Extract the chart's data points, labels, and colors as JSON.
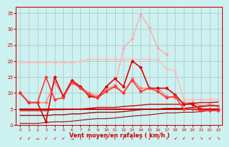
{
  "x": [
    0,
    1,
    2,
    3,
    4,
    5,
    6,
    7,
    8,
    9,
    10,
    11,
    12,
    13,
    14,
    15,
    16,
    17,
    18,
    19,
    20,
    21,
    22,
    23
  ],
  "series": [
    {
      "name": "rafales_max_pink",
      "y": [
        null,
        null,
        null,
        null,
        null,
        null,
        null,
        null,
        null,
        null,
        null,
        12.0,
        24.0,
        27.0,
        34.5,
        30.5,
        24.0,
        22.0,
        null,
        null,
        null,
        null,
        null,
        null
      ],
      "color": "#ffaaaa",
      "lw": 1.0,
      "marker": "D",
      "ms": 2.5,
      "zorder": 2
    },
    {
      "name": "vent_moyen_light",
      "y": [
        19.5,
        19.5,
        19.5,
        19.5,
        19.5,
        19.5,
        19.5,
        20.0,
        20.5,
        20.5,
        20.5,
        20.5,
        20.5,
        20.5,
        20.5,
        20.5,
        20.5,
        17.5,
        17.0,
        8.0,
        8.0,
        8.0,
        8.0,
        8.0
      ],
      "color": "#ffbbbb",
      "lw": 1.0,
      "marker": "D",
      "ms": 2.5,
      "zorder": 2
    },
    {
      "name": "vent_moyen_medium",
      "y": [
        10.0,
        7.0,
        7.0,
        7.0,
        13.5,
        9.0,
        13.0,
        12.0,
        10.0,
        9.0,
        11.0,
        12.5,
        10.0,
        14.5,
        11.5,
        11.5,
        11.5,
        9.0,
        8.5,
        7.0,
        7.0,
        6.0,
        6.5,
        6.0
      ],
      "color": "#ff7777",
      "lw": 1.0,
      "marker": "D",
      "ms": 2.5,
      "zorder": 3
    },
    {
      "name": "rafales_dark",
      "y": [
        10.0,
        7.0,
        7.0,
        1.0,
        15.0,
        9.0,
        14.0,
        12.0,
        9.0,
        8.5,
        12.0,
        14.5,
        12.0,
        20.0,
        18.0,
        11.5,
        11.5,
        11.5,
        9.5,
        6.5,
        6.5,
        5.0,
        5.0,
        5.0
      ],
      "color": "#dd0000",
      "lw": 1.2,
      "marker": "D",
      "ms": 2.5,
      "zorder": 5
    },
    {
      "name": "vent_moyen_dark",
      "y": [
        10.0,
        7.0,
        7.0,
        15.0,
        8.0,
        8.5,
        13.5,
        11.5,
        9.5,
        8.5,
        10.5,
        12.0,
        10.0,
        14.0,
        10.5,
        11.5,
        10.5,
        8.5,
        9.0,
        5.0,
        5.0,
        4.5,
        4.5,
        4.5
      ],
      "color": "#ff3333",
      "lw": 1.2,
      "marker": "D",
      "ms": 2.5,
      "zorder": 5
    },
    {
      "name": "trend_line1",
      "y": [
        5.0,
        5.0,
        5.0,
        5.0,
        5.0,
        5.0,
        5.0,
        5.0,
        5.0,
        5.0,
        5.0,
        5.0,
        5.0,
        5.0,
        5.0,
        5.0,
        5.0,
        5.0,
        5.0,
        5.0,
        5.0,
        5.0,
        5.0,
        5.0
      ],
      "color": "#cc0000",
      "lw": 1.5,
      "marker": null,
      "ms": 0,
      "zorder": 4
    },
    {
      "name": "trend_line2",
      "y": [
        4.5,
        4.5,
        4.5,
        4.5,
        4.8,
        4.8,
        5.0,
        5.0,
        5.2,
        5.5,
        5.5,
        5.5,
        5.8,
        6.0,
        6.2,
        6.5,
        6.5,
        6.5,
        6.5,
        6.5,
        6.8,
        7.0,
        7.0,
        7.2
      ],
      "color": "#cc0000",
      "lw": 1.0,
      "marker": null,
      "ms": 0,
      "zorder": 4
    },
    {
      "name": "trend_line3",
      "y": [
        3.0,
        3.0,
        3.0,
        3.0,
        3.2,
        3.2,
        3.5,
        3.5,
        3.8,
        4.0,
        4.0,
        4.0,
        4.2,
        4.5,
        4.8,
        5.0,
        5.0,
        5.2,
        5.2,
        5.2,
        5.5,
        5.8,
        6.0,
        6.0
      ],
      "color": "#aa0000",
      "lw": 1.0,
      "marker": null,
      "ms": 0,
      "zorder": 4
    },
    {
      "name": "trend_line4",
      "y": [
        0.5,
        0.5,
        0.5,
        0.8,
        1.0,
        1.0,
        1.2,
        1.5,
        1.8,
        2.0,
        2.0,
        2.2,
        2.5,
        2.8,
        3.0,
        3.2,
        3.5,
        3.8,
        3.8,
        4.0,
        4.0,
        4.2,
        4.5,
        4.5
      ],
      "color": "#990000",
      "lw": 0.8,
      "marker": null,
      "ms": 0,
      "zorder": 4
    }
  ],
  "wind_arrows_row1": {
    "x": [
      0,
      1,
      2,
      3,
      4,
      5,
      6,
      7,
      8,
      9,
      10,
      11,
      12,
      13,
      14,
      15,
      16,
      17,
      18,
      19,
      20,
      21,
      22,
      23
    ],
    "symbols": [
      "↙",
      "↙",
      "→",
      "↙",
      "↙",
      "↙",
      "→",
      "↓",
      "↓",
      "↓",
      "↙",
      "↓",
      "↙",
      "↓",
      "↙",
      "↙",
      "↓",
      "↓",
      "↙",
      "↙",
      "↙",
      "↘",
      "↙",
      "↘"
    ],
    "color": "#cc0000",
    "fontsize": 4.5
  },
  "xlabel": "Vent moyen/en rafales ( km/h )",
  "xlim": [
    -0.5,
    23.5
  ],
  "ylim": [
    0,
    37
  ],
  "yticks": [
    0,
    5,
    10,
    15,
    20,
    25,
    30,
    35
  ],
  "xticks": [
    0,
    1,
    2,
    3,
    4,
    5,
    6,
    7,
    8,
    9,
    10,
    11,
    12,
    13,
    14,
    15,
    16,
    17,
    18,
    19,
    20,
    21,
    22,
    23
  ],
  "bg_color": "#cdf0f0",
  "grid_color": "#b0c8c8",
  "tick_color": "#cc0000",
  "label_color": "#cc0000"
}
